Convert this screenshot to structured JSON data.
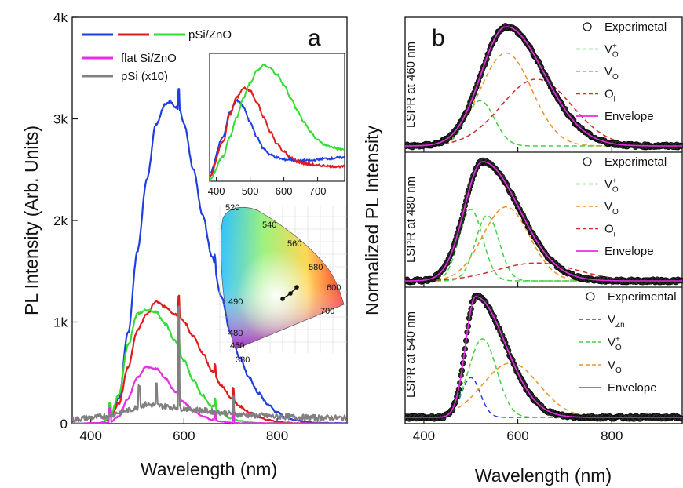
{
  "figure": {
    "panel_a_letter": "a",
    "panel_b_letter": "b",
    "panel_a_ylabel": "PL Intensity (Arb. Units)",
    "panel_a_xlabel": "Wavelength (nm)",
    "panel_b_ylabel": "Normalized PL Intensity",
    "panel_b_xlabel": "Wavelength (nm)"
  },
  "colors": {
    "blue": "#1f3fe0",
    "red": "#e01b1b",
    "green": "#33dd33",
    "magenta": "#e62ee6",
    "gray": "#808080",
    "orange": "#f0902a",
    "darkred": "#d22b2b",
    "dashgreen": "#44d044",
    "dashblue": "#2a3ee0"
  },
  "chart_data": [
    {
      "id": "panel_a",
      "type": "line",
      "xlabel": "Wavelength (nm)",
      "ylabel": "PL Intensity (Arb. Units)",
      "xlim": [
        360,
        950
      ],
      "ylim": [
        0,
        4000
      ],
      "x_ticks": [
        400,
        600,
        800
      ],
      "y_ticks": [
        0,
        1000,
        2000,
        3000,
        4000
      ],
      "y_tick_labels": [
        "0",
        "1k",
        "2k",
        "3k",
        "4k"
      ],
      "legend": {
        "position": "top-left",
        "entries": [
          {
            "label": "pSi/ZnO",
            "colors": [
              "#1f3fe0",
              "#e01b1b",
              "#33dd33"
            ]
          },
          {
            "label": "flat Si/ZnO",
            "colors": [
              "#e62ee6"
            ]
          },
          {
            "label": "pSi (x10)",
            "colors": [
              "#808080"
            ]
          }
        ]
      },
      "series": [
        {
          "color": "#1f3fe0",
          "x": [
            360,
            420,
            440,
            460,
            480,
            500,
            520,
            540,
            560,
            570,
            580,
            590,
            600,
            620,
            640,
            660,
            680,
            700,
            720,
            740,
            760,
            780,
            800,
            820,
            840,
            860,
            880,
            950
          ],
          "y": [
            0,
            5,
            60,
            250,
            900,
            1700,
            2400,
            2950,
            3150,
            3170,
            3120,
            3100,
            2950,
            2500,
            2050,
            1650,
            1250,
            900,
            650,
            450,
            300,
            190,
            110,
            60,
            35,
            20,
            10,
            5
          ]
        },
        {
          "color": "#e01b1b",
          "x": [
            360,
            420,
            440,
            460,
            480,
            500,
            520,
            540,
            560,
            580,
            590,
            600,
            620,
            640,
            660,
            680,
            700,
            720,
            740,
            760,
            780,
            800,
            820,
            840,
            950
          ],
          "y": [
            0,
            5,
            50,
            200,
            560,
            920,
            1080,
            1200,
            1150,
            1080,
            1060,
            1000,
            860,
            690,
            520,
            380,
            260,
            170,
            110,
            65,
            38,
            20,
            10,
            5,
            0
          ]
        },
        {
          "color": "#33dd33",
          "x": [
            360,
            420,
            440,
            460,
            480,
            500,
            520,
            540,
            560,
            580,
            600,
            620,
            640,
            660,
            680,
            700,
            720,
            740,
            760,
            950
          ],
          "y": [
            0,
            5,
            60,
            280,
            780,
            1080,
            1120,
            1100,
            980,
            820,
            620,
            430,
            280,
            170,
            100,
            55,
            28,
            12,
            5,
            0
          ]
        },
        {
          "color": "#e62ee6",
          "x": [
            360,
            440,
            460,
            480,
            500,
            520,
            540,
            560,
            580,
            600,
            620,
            640,
            660,
            680,
            700,
            720,
            950
          ],
          "y": [
            0,
            10,
            70,
            250,
            460,
            560,
            540,
            450,
            320,
            210,
            130,
            75,
            40,
            20,
            10,
            5,
            0
          ]
        },
        {
          "color": "#808080",
          "x": [
            360,
            400,
            440,
            460,
            480,
            500,
            520,
            540,
            560,
            580,
            600,
            620,
            640,
            660,
            680,
            700,
            720,
            760,
            800,
            880,
            950
          ],
          "y": [
            40,
            60,
            80,
            110,
            130,
            160,
            190,
            180,
            170,
            160,
            150,
            140,
            130,
            120,
            110,
            100,
            90,
            80,
            70,
            60,
            55
          ]
        }
      ],
      "inset_spectra": {
        "xlim": [
          380,
          780
        ],
        "x_ticks": [
          400,
          500,
          600,
          700
        ],
        "series": [
          {
            "color": "#1f3fe0",
            "x": [
              380,
              420,
              440,
              460,
              470,
              480,
              500,
              520,
              540,
              560,
              580,
              600,
              620,
              640,
              660,
              680,
              700,
              720,
              740,
              760,
              780
            ],
            "y": [
              0.08,
              0.45,
              0.7,
              0.82,
              0.8,
              0.75,
              0.6,
              0.45,
              0.33,
              0.27,
              0.24,
              0.22,
              0.22,
              0.21,
              0.21,
              0.21,
              0.22,
              0.23,
              0.23,
              0.24,
              0.24
            ]
          },
          {
            "color": "#e01b1b",
            "x": [
              380,
              420,
              440,
              460,
              480,
              500,
              520,
              540,
              560,
              580,
              600,
              620,
              640,
              660,
              680,
              700,
              720,
              740,
              760,
              780
            ],
            "y": [
              0.05,
              0.4,
              0.68,
              0.85,
              0.95,
              0.92,
              0.8,
              0.65,
              0.5,
              0.38,
              0.3,
              0.24,
              0.2,
              0.18,
              0.17,
              0.16,
              0.16,
              0.15,
              0.15,
              0.15
            ]
          },
          {
            "color": "#33dd33",
            "x": [
              380,
              420,
              440,
              460,
              480,
              500,
              520,
              540,
              560,
              580,
              600,
              620,
              640,
              660,
              680,
              700,
              720,
              740,
              760,
              780
            ],
            "y": [
              0.02,
              0.25,
              0.45,
              0.65,
              0.85,
              1.0,
              1.12,
              1.18,
              1.15,
              1.08,
              0.98,
              0.85,
              0.72,
              0.6,
              0.5,
              0.42,
              0.37,
              0.35,
              0.33,
              0.32
            ]
          }
        ]
      },
      "inset_cie": {
        "labels": [
          "520",
          "540",
          "560",
          "580",
          "600",
          "700",
          "490",
          "480",
          "450",
          "380"
        ]
      }
    },
    {
      "id": "panel_b",
      "type": "line",
      "xlabel": "Wavelength (nm)",
      "ylabel": "Normalized PL Intensity",
      "xlim": [
        360,
        950
      ],
      "x_ticks": [
        400,
        600,
        800
      ],
      "subpanels": [
        {
          "side_label": "LSPR at 460 nm",
          "peak": 575,
          "width_left": 75,
          "width_right": 115,
          "legend": [
            {
              "type": "circle",
              "label": "Experimetal"
            },
            {
              "type": "dash",
              "color": "#44d044",
              "label": "V",
              "sub": "O",
              "sup": "+"
            },
            {
              "type": "dash",
              "color": "#f0902a",
              "label": "V",
              "sub": "O",
              "sup": ""
            },
            {
              "type": "dash",
              "color": "#d22b2b",
              "label": "O",
              "sub": "i",
              "sup": ""
            },
            {
              "type": "line",
              "color": "#e62ee6",
              "label": "Envelope"
            }
          ],
          "components": [
            {
              "color": "#44d044",
              "center": 520,
              "sigma": 30,
              "amp": 0.38
            },
            {
              "color": "#f0902a",
              "center": 575,
              "sigma": 55,
              "amp": 0.78
            },
            {
              "color": "#d22b2b",
              "center": 640,
              "sigma": 75,
              "amp": 0.56
            }
          ]
        },
        {
          "side_label": "LSPR at 480 nm",
          "peak": 525,
          "width_left": 55,
          "width_right": 110,
          "legend": [
            {
              "type": "circle",
              "label": "Experimetal"
            },
            {
              "type": "dash",
              "color": "#44d044",
              "label": "V",
              "sub": "O",
              "sup": "+"
            },
            {
              "type": "dash",
              "color": "#f0902a",
              "label": "V",
              "sub": "O",
              "sup": ""
            },
            {
              "type": "dash",
              "color": "#d22b2b",
              "label": "O",
              "sub": "i",
              "sup": ""
            },
            {
              "type": "line",
              "color": "#e62ee6",
              "label": "Envelope"
            }
          ],
          "components": [
            {
              "color": "#44d044",
              "center": 500,
              "sigma": 25,
              "amp": 0.6
            },
            {
              "color": "#44d044",
              "center": 535,
              "sigma": 25,
              "amp": 0.55
            },
            {
              "color": "#f0902a",
              "center": 575,
              "sigma": 50,
              "amp": 0.62
            },
            {
              "color": "#d22b2b",
              "center": 640,
              "sigma": 85,
              "amp": 0.15
            }
          ]
        },
        {
          "side_label": "LSPR at 540 nm",
          "peak": 510,
          "width_left": 30,
          "width_right": 90,
          "legend": [
            {
              "type": "circle",
              "label": "Experimental"
            },
            {
              "type": "dash",
              "color": "#2a3ee0",
              "label": "V",
              "sub": "Zn",
              "sup": ""
            },
            {
              "type": "dash",
              "color": "#44d044",
              "label": "V",
              "sub": "O",
              "sup": "+"
            },
            {
              "type": "dash",
              "color": "#f0902a",
              "label": "V",
              "sub": "O",
              "sup": ""
            },
            {
              "type": "line",
              "color": "#e62ee6",
              "label": "Envelope"
            }
          ],
          "components": [
            {
              "color": "#2a3ee0",
              "center": 500,
              "sigma": 20,
              "amp": 0.33
            },
            {
              "color": "#44d044",
              "center": 525,
              "sigma": 30,
              "amp": 0.65
            },
            {
              "color": "#f0902a",
              "center": 585,
              "sigma": 60,
              "amp": 0.45
            }
          ]
        }
      ]
    }
  ]
}
